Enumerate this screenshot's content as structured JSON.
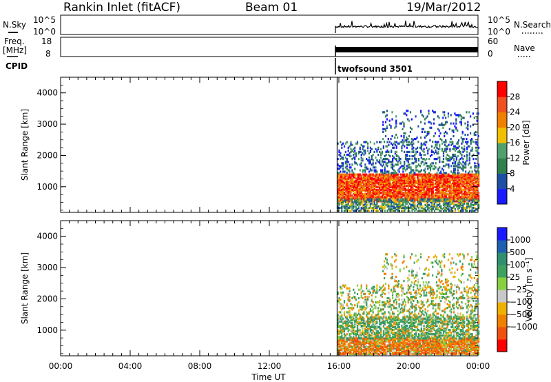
{
  "header": {
    "station": "Rankin Inlet (fitACF)",
    "beam": "Beam 01",
    "date": "19/Mar/2012"
  },
  "panels": {
    "nsky_label": "N.Sky",
    "nsky_ticks": [
      "10^5",
      "10^0"
    ],
    "nsearch_label": "N.Search",
    "nsearch_ticks": [
      "10^5",
      "10^0"
    ],
    "freq_label": "Freq.",
    "freq_unit": "[MHz]",
    "freq_ticks": [
      "18",
      "8"
    ],
    "nave_label": "Nave",
    "nave_ticks": [
      "60",
      "0"
    ],
    "cpid_label": "CPID",
    "cpid_value": "twofsound 3501"
  },
  "colors": {
    "power_scale": [
      "#1a1aff",
      "#1f4fa5",
      "#2f7f4f",
      "#4f9f6f",
      "#f0c000",
      "#f08000",
      "#f05020",
      "#ff0000"
    ],
    "velocity_scale": [
      "#ff0000",
      "#f05010",
      "#f08000",
      "#f0b000",
      "#c8c8c8",
      "#88d040",
      "#3fa05f",
      "#2f8f6f",
      "#1f5fb0",
      "#1a1aff"
    ]
  },
  "chart_data": [
    {
      "type": "heatmap",
      "name": "power",
      "xlabel": "Time UT",
      "ylabel": "Slant Range [km]",
      "xlim": [
        0,
        24
      ],
      "ylim": [
        180,
        4500
      ],
      "x_ticks": [
        "00:00",
        "04:00",
        "08:00",
        "12:00",
        "16:00",
        "20:00",
        "00:00"
      ],
      "y_ticks": [
        "1000",
        "2000",
        "3000",
        "4000"
      ],
      "y_tick_values": [
        1000,
        2000,
        3000,
        4000
      ],
      "colorbar_label": "Power [dB]",
      "colorbar_ticks": [
        "28",
        "24",
        "20",
        "16",
        "12",
        "8",
        "4"
      ],
      "colorbar_range": [
        0,
        32
      ],
      "data_start_hour": 15.9,
      "echo_regions": [
        {
          "t0": 15.9,
          "t1": 24.0,
          "r0": 500,
          "r1": 1400,
          "level": 26
        },
        {
          "t0": 15.9,
          "t1": 24.0,
          "r0": 200,
          "r1": 600,
          "level": 12
        },
        {
          "t0": 15.9,
          "t1": 24.0,
          "r0": 1400,
          "r1": 2400,
          "level": 8
        },
        {
          "t0": 18.5,
          "t1": 24.0,
          "r0": 2400,
          "r1": 3400,
          "level": 6
        }
      ]
    },
    {
      "type": "heatmap",
      "name": "velocity",
      "xlabel": "Time UT",
      "ylabel": "Slant Range [km]",
      "xlim": [
        0,
        24
      ],
      "ylim": [
        180,
        4500
      ],
      "x_ticks": [
        "00:00",
        "04:00",
        "08:00",
        "12:00",
        "16:00",
        "20:00",
        "00:00"
      ],
      "y_ticks": [
        "1000",
        "2000",
        "3000",
        "4000"
      ],
      "y_tick_values": [
        1000,
        2000,
        3000,
        4000
      ],
      "colorbar_label": "Velocity [m s⁻¹]",
      "colorbar_ticks": [
        "1000",
        "500",
        "100",
        "25",
        "−25",
        "−100",
        "−500",
        "−1000"
      ],
      "data_start_hour": 15.9,
      "echo_regions": [
        {
          "t0": 15.9,
          "t1": 24.0,
          "r0": 200,
          "r1": 700,
          "level": -300
        },
        {
          "t0": 15.9,
          "t1": 24.0,
          "r0": 700,
          "r1": 1400,
          "level": 200
        },
        {
          "t0": 15.9,
          "t1": 24.0,
          "r0": 1400,
          "r1": 2400,
          "level": 50
        },
        {
          "t0": 18.5,
          "t1": 24.0,
          "r0": 2400,
          "r1": 3400,
          "level": 10
        }
      ]
    }
  ]
}
